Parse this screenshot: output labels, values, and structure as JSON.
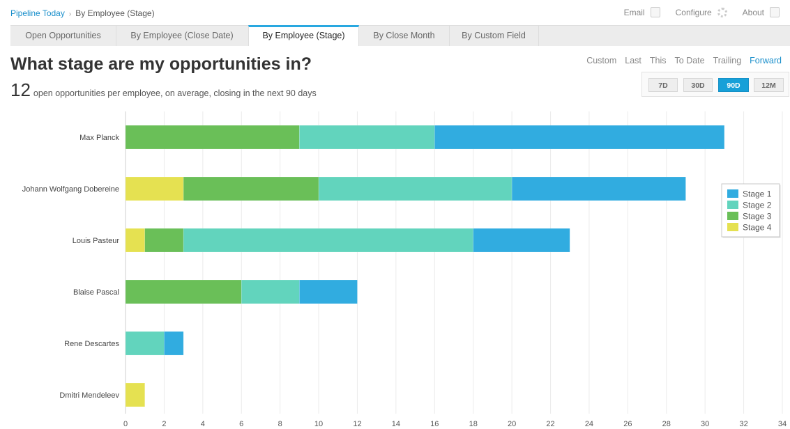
{
  "breadcrumb": {
    "root": "Pipeline Today",
    "separator": "›",
    "current": "By Employee (Stage)"
  },
  "toplinks": [
    {
      "label": "Email",
      "icon": "email-icon"
    },
    {
      "label": "Configure",
      "icon": "gear-icon"
    },
    {
      "label": "About",
      "icon": "info-icon"
    }
  ],
  "tabs": [
    {
      "label": "Open Opportunities",
      "active": false
    },
    {
      "label": "By Employee (Close Date)",
      "active": false
    },
    {
      "label": "By Employee (Stage)",
      "active": true
    },
    {
      "label": "By Close Month",
      "active": false
    },
    {
      "label": "By Custom Field",
      "active": false
    }
  ],
  "title": "What stage are my opportunities in?",
  "summary": {
    "value": "12",
    "text": "open opportunities per employee, on average, closing in the next 90 days"
  },
  "range_options": [
    {
      "label": "Custom",
      "active": false
    },
    {
      "label": "Last",
      "active": false
    },
    {
      "label": "This",
      "active": false
    },
    {
      "label": "To Date",
      "active": false
    },
    {
      "label": "Trailing",
      "active": false
    },
    {
      "label": "Forward",
      "active": true
    }
  ],
  "periods": [
    {
      "label": "7D",
      "active": false
    },
    {
      "label": "30D",
      "active": false
    },
    {
      "label": "90D",
      "active": true
    },
    {
      "label": "12M",
      "active": false
    }
  ],
  "chart_data": {
    "type": "bar",
    "orientation": "horizontal",
    "stacked": true,
    "categories": [
      "Max Planck",
      "Johann Wolfgang Dobereine",
      "Louis Pasteur",
      "Blaise Pascal",
      "Rene Descartes",
      "Dmitri Mendeleev"
    ],
    "series": [
      {
        "name": "Stage 4",
        "color": "#e5e151",
        "values": [
          0,
          3,
          1,
          0,
          0,
          1
        ]
      },
      {
        "name": "Stage 3",
        "color": "#6abf58",
        "values": [
          9,
          7,
          2,
          6,
          0,
          0
        ]
      },
      {
        "name": "Stage 2",
        "color": "#62d4bd",
        "values": [
          7,
          10,
          15,
          3,
          2,
          0
        ]
      },
      {
        "name": "Stage 1",
        "color": "#31ace0",
        "values": [
          15,
          9,
          5,
          3,
          1,
          0
        ]
      }
    ],
    "legend_order": [
      "Stage 1",
      "Stage 2",
      "Stage 3",
      "Stage 4"
    ],
    "xlim": [
      0,
      34
    ],
    "xticks": [
      0,
      2,
      4,
      6,
      8,
      10,
      12,
      14,
      16,
      18,
      20,
      22,
      24,
      26,
      28,
      30,
      32,
      34
    ],
    "grid": true,
    "legend_position": "right",
    "title": "",
    "xlabel": "",
    "ylabel": ""
  }
}
